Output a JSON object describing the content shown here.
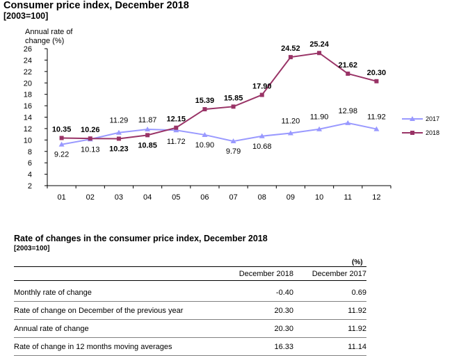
{
  "header": {
    "title": "Consumer price index, December 2018",
    "subtitle": "[2003=100]"
  },
  "chart_data": {
    "type": "line",
    "title": "Consumer price index, December 2018",
    "subtitle": "[2003=100]",
    "ylabel": "Annual rate of change (%)",
    "ylabel_lines": [
      "Annual rate of",
      "change (%)"
    ],
    "xlabel": "",
    "categories": [
      "01",
      "02",
      "03",
      "04",
      "05",
      "06",
      "07",
      "08",
      "09",
      "10",
      "11",
      "12"
    ],
    "yticks": [
      "2",
      "4",
      "6",
      "8",
      "10",
      "12",
      "14",
      "16",
      "18",
      "20",
      "22",
      "24",
      "26"
    ],
    "ylim": [
      2,
      26
    ],
    "grid": false,
    "legend_position": "right",
    "series": [
      {
        "name": "2017",
        "color": "#9999ff",
        "marker": "triangle",
        "values": [
          9.22,
          10.13,
          11.29,
          11.87,
          11.72,
          10.9,
          9.79,
          10.68,
          11.2,
          11.9,
          12.98,
          11.92
        ],
        "labels": [
          "9.22",
          "10.13",
          "11.29",
          "11.87",
          "11.72",
          "10.90",
          "9.79",
          "10.68",
          "11.20",
          "11.90",
          "12.98",
          "11.92"
        ]
      },
      {
        "name": "2018",
        "color": "#993366",
        "marker": "square",
        "values": [
          10.35,
          10.26,
          10.23,
          10.85,
          12.15,
          15.39,
          15.85,
          17.9,
          24.52,
          25.24,
          21.62,
          20.3
        ],
        "labels": [
          "10.35",
          "10.26",
          "10.23",
          "10.85",
          "12.15",
          "15.39",
          "15.85",
          "17.90",
          "24.52",
          "25.24",
          "21.62",
          "20.30"
        ]
      }
    ]
  },
  "table": {
    "title": "Rate of changes in the consumer price index, December 2018",
    "subtitle": "[2003=100]",
    "unit": "(%)",
    "columns": [
      "",
      "December 2018",
      "December 2017"
    ],
    "rows": [
      {
        "label": "Monthly rate of change",
        "dec2018": "-0.40",
        "dec2017": "0.69"
      },
      {
        "label": "Rate of change on December of the previous year",
        "dec2018": "20.30",
        "dec2017": "11.92"
      },
      {
        "label": "Annual rate of change",
        "dec2018": "20.30",
        "dec2017": "11.92"
      },
      {
        "label": "Rate of change in 12 months moving averages",
        "dec2018": "16.33",
        "dec2017": "11.14"
      }
    ]
  }
}
